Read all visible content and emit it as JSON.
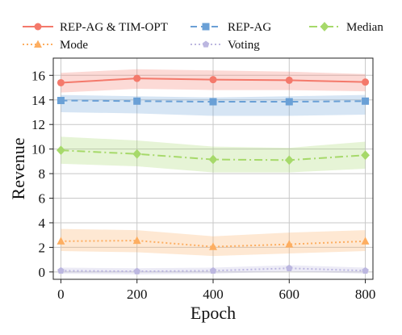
{
  "chart_data": {
    "type": "line",
    "xlabel": "Epoch",
    "ylabel": "Revenue",
    "x": [
      0,
      200,
      400,
      600,
      800
    ],
    "xlim": [
      -20,
      820
    ],
    "ylim": [
      -0.6,
      17.4
    ],
    "xticks": [
      "0",
      "200",
      "400",
      "600",
      "800"
    ],
    "yticks": [
      "0",
      "2",
      "4",
      "6",
      "8",
      "10",
      "12",
      "14",
      "16"
    ],
    "grid": true,
    "legend_position": "top",
    "series": [
      {
        "name": "REP-AG & TIM-OPT",
        "values": [
          15.4,
          15.75,
          15.65,
          15.6,
          15.45
        ],
        "lower": [
          14.6,
          14.9,
          14.8,
          14.8,
          14.7
        ],
        "upper": [
          16.2,
          16.5,
          16.4,
          16.3,
          16.1
        ],
        "color": "#f4796b",
        "marker": "circle",
        "dash": ""
      },
      {
        "name": "REP-AG",
        "values": [
          13.95,
          13.9,
          13.85,
          13.85,
          13.9
        ],
        "lower": [
          13.0,
          12.9,
          12.7,
          12.7,
          12.8
        ],
        "upper": [
          14.4,
          14.3,
          14.2,
          14.3,
          14.4
        ],
        "color": "#6aa0d6",
        "marker": "square",
        "dash": "8,5"
      },
      {
        "name": "Median",
        "values": [
          9.9,
          9.6,
          9.15,
          9.1,
          9.5
        ],
        "lower": [
          8.8,
          8.6,
          8.1,
          8.1,
          8.4
        ],
        "upper": [
          11.0,
          10.7,
          10.2,
          10.1,
          10.6
        ],
        "color": "#a6d96a",
        "marker": "diamond",
        "dash": "10,4,2,4"
      },
      {
        "name": "Mode",
        "values": [
          2.5,
          2.55,
          2.05,
          2.25,
          2.5
        ],
        "lower": [
          1.7,
          1.6,
          1.3,
          1.5,
          1.7
        ],
        "upper": [
          3.5,
          3.4,
          2.9,
          3.2,
          3.4
        ],
        "color": "#fdae61",
        "marker": "triangle",
        "dash": "2,3"
      },
      {
        "name": "Voting",
        "values": [
          0.1,
          0.05,
          0.1,
          0.3,
          0.1
        ],
        "lower": [
          -0.15,
          -0.2,
          -0.15,
          0.05,
          -0.15
        ],
        "upper": [
          0.35,
          0.3,
          0.35,
          0.55,
          0.35
        ],
        "color": "#bcb7e0",
        "marker": "pentagon",
        "dash": "2,3"
      }
    ]
  }
}
